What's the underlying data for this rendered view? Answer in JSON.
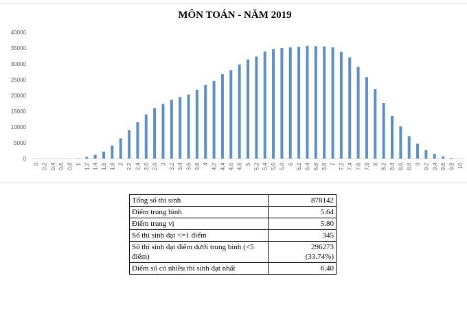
{
  "chart_data": {
    "type": "bar",
    "title": "MÔN TOÁN - NĂM 2019",
    "categories": [
      "0",
      "0.2",
      "0.4",
      "0.6",
      "0.8",
      "1",
      "1.2",
      "1.4",
      "1.6",
      "1.8",
      "2",
      "2.2",
      "2.4",
      "2.6",
      "2.8",
      "3",
      "3.2",
      "3.4",
      "3.6",
      "3.8",
      "4",
      "4.2",
      "4.4",
      "4.6",
      "4.8",
      "5",
      "5.2",
      "5.4",
      "5.6",
      "5.8",
      "6",
      "6.2",
      "6.4",
      "6.6",
      "6.8",
      "7",
      "7.2",
      "7.4",
      "7.6",
      "7.8",
      "8",
      "8.2",
      "8.4",
      "8.6",
      "8.8",
      "9",
      "9.2",
      "9.4",
      "9.6",
      "9.8",
      "10"
    ],
    "values": [
      0,
      0,
      0,
      0,
      30,
      100,
      500,
      1200,
      2200,
      4100,
      6400,
      9000,
      11500,
      14000,
      16000,
      17300,
      18600,
      19500,
      20300,
      21800,
      23300,
      24600,
      26700,
      28000,
      29800,
      31400,
      32300,
      33900,
      34700,
      35000,
      35200,
      35400,
      35700,
      35600,
      35500,
      35200,
      33800,
      32100,
      29000,
      25800,
      22000,
      17600,
      13500,
      10200,
      7100,
      4700,
      2700,
      1500,
      700,
      200,
      20
    ],
    "color": "#5b8fc7",
    "ylim": [
      0,
      40000
    ],
    "yticks": [
      0,
      5000,
      10000,
      15000,
      20000,
      25000,
      30000,
      35000,
      40000
    ],
    "grid": false
  },
  "table": {
    "rows": [
      [
        "Tổng số thí sinh",
        "878142"
      ],
      [
        "Điểm trung bình",
        "5.64"
      ],
      [
        "Điểm trung vị",
        "5.80"
      ],
      [
        "Số thí sinh đạt <=1 điểm",
        "345"
      ],
      [
        "Số thí sinh đạt điểm dưới trung bình (<5 điểm)",
        "296273",
        "(33.74%)"
      ],
      [
        "Điểm số có nhiều thí sinh đạt nhất",
        "6.40"
      ]
    ]
  }
}
